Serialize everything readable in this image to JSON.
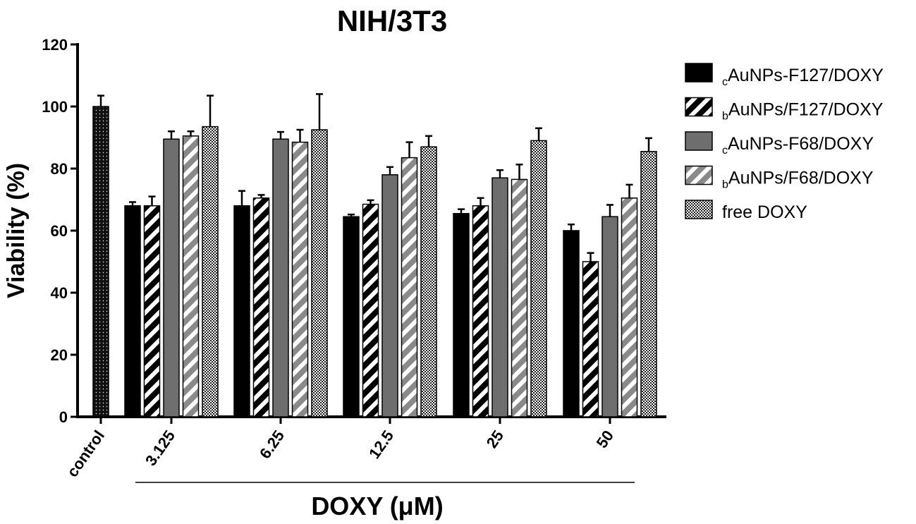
{
  "chart_data": {
    "type": "bar",
    "title": "NIH/3T3",
    "ylabel": "Viability (%)",
    "xlabel": "DOXY (μM)",
    "ylim": [
      0,
      120
    ],
    "yticks": [
      0,
      20,
      40,
      60,
      80,
      100,
      120
    ],
    "grid": false,
    "legend_position": "right",
    "control": {
      "label": "control",
      "value": 100,
      "error": 3.5,
      "pattern": "dots"
    },
    "categories": [
      "3.125",
      "6.25",
      "12.5",
      "25",
      "50"
    ],
    "series": [
      {
        "name_sub": "c",
        "name_main": "AuNPs-F127/DOXY",
        "pattern": "solid-black",
        "values": [
          68,
          68,
          64.5,
          65.5,
          60
        ],
        "errors": [
          1.2,
          4.8,
          0.7,
          1.4,
          2
        ]
      },
      {
        "name_sub": "b",
        "name_main": "AuNPs/F127/DOXY",
        "pattern": "stripe-black",
        "values": [
          68,
          70.5,
          68.5,
          68,
          50
        ],
        "errors": [
          3,
          1,
          1.3,
          2.5,
          2.8
        ]
      },
      {
        "name_sub": "c",
        "name_main": "AuNPs-F68/DOXY",
        "pattern": "solid-gray",
        "values": [
          89.5,
          89.5,
          78,
          77,
          64.5
        ],
        "errors": [
          2.5,
          2.3,
          2.5,
          2.5,
          3.8
        ]
      },
      {
        "name_sub": "b",
        "name_main": "AuNPs/F68/DOXY",
        "pattern": "stripe-gray",
        "values": [
          90.5,
          88.5,
          83.5,
          76.5,
          70.5
        ],
        "errors": [
          1.5,
          4,
          5,
          4.8,
          4.3
        ]
      },
      {
        "name_sub": "",
        "name_main": "free DOXY",
        "pattern": "checker",
        "values": [
          93.5,
          92.5,
          87,
          89,
          85.5
        ],
        "errors": [
          10,
          11.5,
          3.5,
          4,
          4.3
        ]
      }
    ]
  }
}
